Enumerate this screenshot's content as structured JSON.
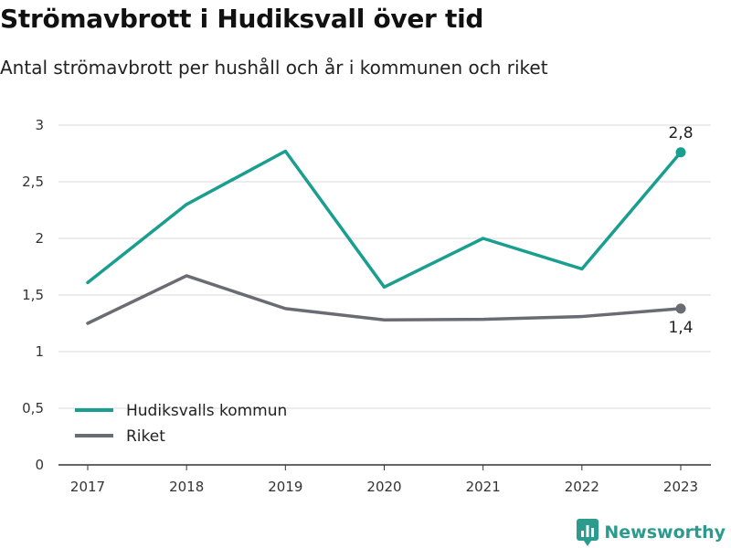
{
  "header": {
    "title": "Strömavbrott i Hudiksvall över tid",
    "subtitle": "Antal strömavbrott per hushåll och år i kommunen och riket"
  },
  "branding": {
    "name": "Newsworthy",
    "icon": "newsworthy-logo-icon",
    "color": "#2a9b8c"
  },
  "chart_data": {
    "type": "line",
    "x": [
      "2017",
      "2018",
      "2019",
      "2020",
      "2021",
      "2022",
      "2023"
    ],
    "ylim": [
      0,
      3
    ],
    "yticks": [
      0,
      0.5,
      1,
      1.5,
      2,
      2.5,
      3
    ],
    "ytick_labels": [
      "0",
      "0,5",
      "1",
      "1,5",
      "2",
      "2,5",
      "3"
    ],
    "grid": true,
    "legend_position": "bottom-left",
    "series": [
      {
        "name": "Hudiksvalls kommun",
        "color": "#1a9e8f",
        "values": [
          1.61,
          2.3,
          2.77,
          1.57,
          2.0,
          1.73,
          2.76
        ],
        "end_label": "2,8"
      },
      {
        "name": "Riket",
        "color": "#6b6b73",
        "values": [
          1.25,
          1.67,
          1.38,
          1.28,
          1.285,
          1.31,
          1.38
        ],
        "end_label": "1,4"
      }
    ]
  }
}
